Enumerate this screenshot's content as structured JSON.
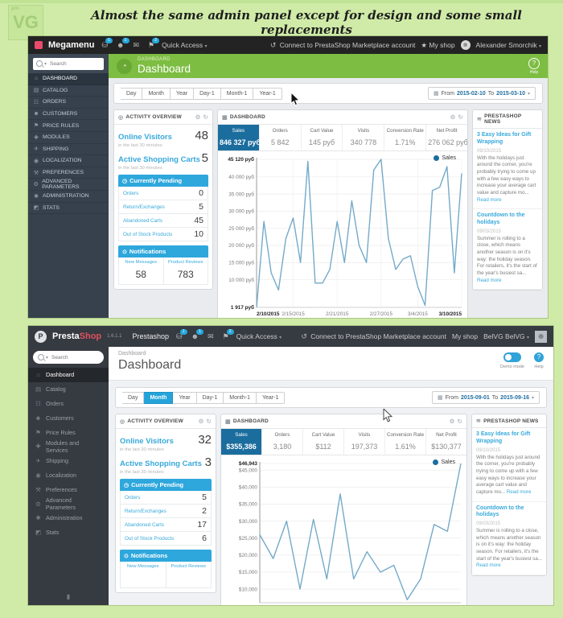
{
  "page": {
    "title": "Almost the same admin panel except for design and some small replacements",
    "watermark": "VG",
    "watermark_small": "pro"
  },
  "colors": {
    "accent_blue": "#30a3d9",
    "selected_metric_blue": "#1b6d9e",
    "green_header": "#7dbd42",
    "chart_line": "#74aac9",
    "badge_blue": "#25a8dc",
    "brand_red": "#e0515f",
    "poster_background": "#cfeba7"
  },
  "shot1": {
    "topbar": {
      "brand": "Megamenu",
      "quick_access": "Quick Access",
      "cart_badge": "1",
      "customers_badge": "1",
      "notif_badge": "2",
      "connect": "Connect to PrestaShop Marketplace account",
      "my_shop": "My shop",
      "user": "Alexander Smorchik"
    },
    "search_placeholder": "Search",
    "sidebar": [
      {
        "icon": "⌂",
        "label": "DASHBOARD",
        "active": true
      },
      {
        "icon": "▤",
        "label": "CATALOG"
      },
      {
        "icon": "☷",
        "label": "ORDERS"
      },
      {
        "icon": "☻",
        "label": "CUSTOMERS"
      },
      {
        "icon": "⚑",
        "label": "PRICE RULES"
      },
      {
        "icon": "✚",
        "label": "MODULES"
      },
      {
        "icon": "✈",
        "label": "SHIPPING"
      },
      {
        "icon": "◉",
        "label": "LOCALIZATION"
      },
      {
        "icon": "⚒",
        "label": "PREFERENCES"
      },
      {
        "icon": "⚙",
        "label": "ADVANCED PARAMETERS"
      },
      {
        "icon": "✱",
        "label": "ADMINISTRATION"
      },
      {
        "icon": "◩",
        "label": "STATS"
      }
    ],
    "header": {
      "breadcrumb": "DASHBOARD",
      "title": "Dashboard",
      "help": "Help"
    },
    "toolbar": {
      "buttons": [
        {
          "label": "Day"
        },
        {
          "label": "Month"
        },
        {
          "label": "Year"
        },
        {
          "label": "Day-1"
        },
        {
          "label": "Month-1"
        },
        {
          "label": "Year-1"
        }
      ],
      "from_label": "From",
      "from": "2015-02-10",
      "to_label": "To",
      "to": "2015-03-10"
    },
    "activity": {
      "title": "ACTIVITY OVERVIEW",
      "online_visitors_label": "Online Visitors",
      "online_visitors_value": "48",
      "visitors_note": "in the last 30 minutes",
      "carts_label": "Active Shopping Carts",
      "carts_value": "5",
      "carts_note": "in the last 30 minutes",
      "pending_title": "Currently Pending",
      "pending_rows": [
        {
          "label": "Orders",
          "value": "0"
        },
        {
          "label": "Return/Exchanges",
          "value": "5"
        },
        {
          "label": "Abandoned Carts",
          "value": "45"
        },
        {
          "label": "Out of Stock Products",
          "value": "10"
        }
      ],
      "notifications_title": "Notifications",
      "notification_cols": [
        {
          "label": "New Messages",
          "value": "58"
        },
        {
          "label": "Product Reviews",
          "value": "783"
        }
      ]
    },
    "dashboard": {
      "title": "DASHBOARD",
      "metrics": [
        {
          "label": "Sales",
          "value": "846 327 руб",
          "selected": true
        },
        {
          "label": "Orders",
          "value": "5 842"
        },
        {
          "label": "Cart Value",
          "value": "145 руб"
        },
        {
          "label": "Visits",
          "value": "340 778"
        },
        {
          "label": "Conversion Rate",
          "value": "1.71%"
        },
        {
          "label": "Net Profit",
          "value": "276 062 руб"
        }
      ]
    },
    "news": {
      "title": "PRESTASHOP NEWS",
      "items": [
        {
          "title": "3 Easy Ideas for Gift Wrapping",
          "date": "09/10/2015",
          "body": "With the holidays just around the corner, you're probably trying to come up with a few easy ways to increase your average cart value and capture mo...",
          "more": "Read more"
        },
        {
          "title": "Countdown to the holidays",
          "date": "09/03/2015",
          "body": "Summer is rolling to a close, which means another season is on it's way: the holiday season. For retailers, it's the start of the year's busiest sa...",
          "more": "Read more"
        }
      ]
    }
  },
  "shot2": {
    "topbar": {
      "brand_presta": "Presta",
      "brand_shop": "Shop",
      "version": "1.6.1.1",
      "shop_name": "Prestashop",
      "quick_access": "Quick Access",
      "cart_badge": "1",
      "customers_badge": "1",
      "notif_badge": "2",
      "connect": "Connect to PrestaShop Marketplace account",
      "my_shop": "My shop",
      "user": "BelVG BelVG"
    },
    "search_placeholder": "Search",
    "sidebar": [
      {
        "icon": "⌂",
        "label": "Dashboard",
        "active": true
      },
      {
        "icon": "▤",
        "label": "Catalog"
      },
      {
        "icon": "☷",
        "label": "Orders"
      },
      {
        "icon": "☻",
        "label": "Customers"
      },
      {
        "icon": "⚑",
        "label": "Price Rules"
      },
      {
        "icon": "✚",
        "label": "Modules and Services"
      },
      {
        "icon": "✈",
        "label": "Shipping"
      },
      {
        "icon": "◉",
        "label": "Localization"
      },
      {
        "icon": "⚒",
        "label": "Preferences"
      },
      {
        "icon": "⚙",
        "label": "Advanced Parameters"
      },
      {
        "icon": "✱",
        "label": "Administration"
      },
      {
        "icon": "◩",
        "label": "Stats"
      }
    ],
    "header": {
      "breadcrumb": "Dashboard",
      "title": "Dashboard",
      "demo_mode": "Demo mode",
      "help": "Help"
    },
    "toolbar": {
      "buttons": [
        {
          "label": "Day"
        },
        {
          "label": "Month",
          "selected": true
        },
        {
          "label": "Year"
        },
        {
          "label": "Day-1"
        },
        {
          "label": "Month-1"
        },
        {
          "label": "Year-1"
        }
      ],
      "from_label": "From",
      "from": "2015-09-01",
      "to_label": "To",
      "to": "2015-09-16"
    },
    "activity": {
      "title": "ACTIVITY OVERVIEW",
      "online_visitors_label": "Online Visitors",
      "online_visitors_value": "32",
      "visitors_note": "in the last 30 minutes",
      "carts_label": "Active Shopping Carts",
      "carts_value": "3",
      "carts_note": "in the last 30 minutes",
      "pending_title": "Currently Pending",
      "pending_rows": [
        {
          "label": "Orders",
          "value": "5"
        },
        {
          "label": "Return/Exchanges",
          "value": "2"
        },
        {
          "label": "Abandoned Carts",
          "value": "17"
        },
        {
          "label": "Out of Stock Products",
          "value": "6"
        }
      ],
      "notifications_title": "Notifications",
      "notification_cols": [
        {
          "label": "New Messages",
          "value": ""
        },
        {
          "label": "Product Reviews",
          "value": ""
        }
      ]
    },
    "dashboard": {
      "title": "DASHBOARD",
      "metrics": [
        {
          "label": "Sales",
          "value": "$355,386",
          "selected": true
        },
        {
          "label": "Orders",
          "value": "3,180"
        },
        {
          "label": "Cart Value",
          "value": "$112"
        },
        {
          "label": "Visits",
          "value": "197,373"
        },
        {
          "label": "Conversion Rate",
          "value": "1.61%"
        },
        {
          "label": "Net Profit",
          "value": "$130,377"
        }
      ]
    },
    "news": {
      "title": "PRESTASHOP NEWS",
      "items": [
        {
          "title": "3 Easy Ideas for Gift Wrapping",
          "date": "09/10/2015",
          "body": "With the holidays just around the corner, you're probably trying to come up with a few easy ways to increase your average cart value and capture mo...",
          "more": "Read more"
        },
        {
          "title": "Countdown to the holidays",
          "date": "09/03/2015",
          "body": "Summer is rolling to a close, which means another season is on it's way: the holiday season. For retailers, it's the start of the year's busiest sa...",
          "more": "Read more"
        }
      ]
    }
  },
  "chart_data": [
    {
      "type": "line",
      "title": "Sales (Megamenu dashboard, 2015-02-10 to 2015-03-10)",
      "series": [
        {
          "name": "Sales",
          "values": [
            1917,
            27000,
            12000,
            7000,
            22000,
            28000,
            15000,
            44500,
            9000,
            9000,
            13000,
            27000,
            15000,
            33000,
            20000,
            15000,
            42000,
            45120,
            22000,
            13000,
            16000,
            17000,
            8000,
            2500,
            36000,
            37000,
            43000,
            12000,
            41000
          ]
        }
      ],
      "ylim": [
        1917,
        45120
      ],
      "yticks": [
        {
          "label": "45 120 руб",
          "value": 45120,
          "bold": true
        },
        {
          "label": "40 000 руб",
          "value": 40000
        },
        {
          "label": "35 000 руб",
          "value": 35000
        },
        {
          "label": "30 000 руб",
          "value": 30000
        },
        {
          "label": "25 000 руб",
          "value": 25000
        },
        {
          "label": "20 000 руб",
          "value": 20000
        },
        {
          "label": "15 000 руб",
          "value": 15000
        },
        {
          "label": "10 000 руб",
          "value": 10000
        },
        {
          "label": "1 917 руб",
          "value": 1917,
          "bold": true
        }
      ],
      "x_labels": [
        {
          "label": "2/10/2015",
          "index": 0,
          "bold": true
        },
        {
          "label": "2/15/2015",
          "index": 5
        },
        {
          "label": "2/21/2015",
          "index": 11
        },
        {
          "label": "2/27/2015",
          "index": 17
        },
        {
          "label": "3/4/2015",
          "index": 22
        },
        {
          "label": "3/10/2015",
          "index": 28,
          "bold": true
        }
      ],
      "grid": true,
      "legend_position": "top-right"
    },
    {
      "type": "line",
      "title": "Sales (default dashboard, 2015-09-01 to 2015-09-16)",
      "series": [
        {
          "name": "Sales",
          "values": [
            26000,
            19000,
            30000,
            10000,
            30500,
            13000,
            38000,
            13000,
            21000,
            15000,
            17000,
            6900,
            13000,
            29000,
            27000,
            46943
          ]
        }
      ],
      "ylim": [
        6000,
        46943
      ],
      "yticks": [
        {
          "label": "$46,943",
          "value": 46943,
          "bold": true
        },
        {
          "label": "$45,000",
          "value": 45000
        },
        {
          "label": "$40,000",
          "value": 40000
        },
        {
          "label": "$35,000",
          "value": 35000
        },
        {
          "label": "$30,000",
          "value": 30000
        },
        {
          "label": "$25,000",
          "value": 25000
        },
        {
          "label": "$20,000",
          "value": 20000
        },
        {
          "label": "$15,000",
          "value": 15000
        },
        {
          "label": "$10,000",
          "value": 10000
        }
      ],
      "x_labels": [],
      "grid": true,
      "legend_position": "top-right"
    }
  ]
}
